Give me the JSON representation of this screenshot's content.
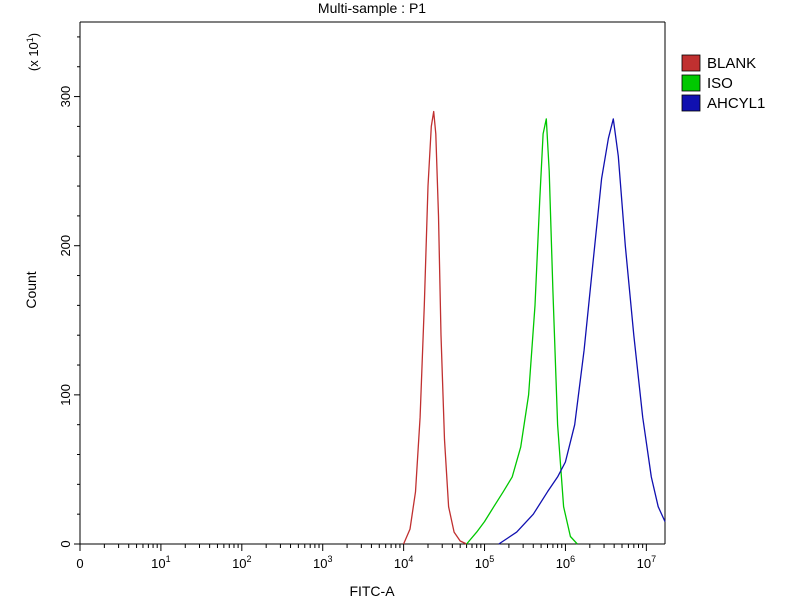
{
  "chart_data": {
    "type": "line",
    "title": "Multi-sample : P1",
    "xlabel": "FITC-A",
    "ylabel": "Count",
    "y_multiplier": "(x 10",
    "y_multiplier_exp": "1",
    "y_multiplier_close": ")",
    "x_scale": "log",
    "xlim": [
      0,
      17000000
    ],
    "ylim": [
      0,
      350
    ],
    "x_ticks": [
      {
        "base": "0",
        "exp": ""
      },
      {
        "base": "10",
        "exp": "1"
      },
      {
        "base": "10",
        "exp": "2"
      },
      {
        "base": "10",
        "exp": "3"
      },
      {
        "base": "10",
        "exp": "4"
      },
      {
        "base": "10",
        "exp": "5"
      },
      {
        "base": "10",
        "exp": "6"
      },
      {
        "base": "10",
        "exp": "7"
      }
    ],
    "y_ticks": [
      "0",
      "100",
      "200",
      "300"
    ],
    "legend_position": "top-right",
    "series": [
      {
        "name": "BLANK",
        "color": "#c03030",
        "x": [
          10000,
          12000,
          14000,
          16000,
          18000,
          20000,
          22000,
          23500,
          25000,
          27000,
          29000,
          32000,
          36000,
          42000,
          50000,
          60000
        ],
        "y": [
          0,
          10,
          35,
          85,
          160,
          240,
          280,
          290,
          275,
          220,
          140,
          70,
          25,
          8,
          2,
          0
        ]
      },
      {
        "name": "ISO",
        "color": "#00c800",
        "x": [
          60000,
          80000,
          100000,
          130000,
          170000,
          220000,
          280000,
          350000,
          420000,
          480000,
          530000,
          580000,
          630000,
          700000,
          800000,
          950000,
          1150000,
          1400000
        ],
        "y": [
          0,
          8,
          15,
          25,
          35,
          45,
          65,
          100,
          160,
          230,
          275,
          285,
          250,
          170,
          80,
          25,
          5,
          0
        ]
      },
      {
        "name": "AHCYL1",
        "color": "#1010b0",
        "x": [
          150000,
          250000,
          400000,
          600000,
          800000,
          1000000,
          1300000,
          1700000,
          2200000,
          2800000,
          3400000,
          3900000,
          4500000,
          5500000,
          7000000,
          9000000,
          11500000,
          14000000,
          17000000
        ],
        "y": [
          0,
          8,
          20,
          35,
          45,
          55,
          80,
          130,
          190,
          245,
          272,
          285,
          260,
          200,
          140,
          85,
          45,
          25,
          15
        ]
      }
    ]
  }
}
